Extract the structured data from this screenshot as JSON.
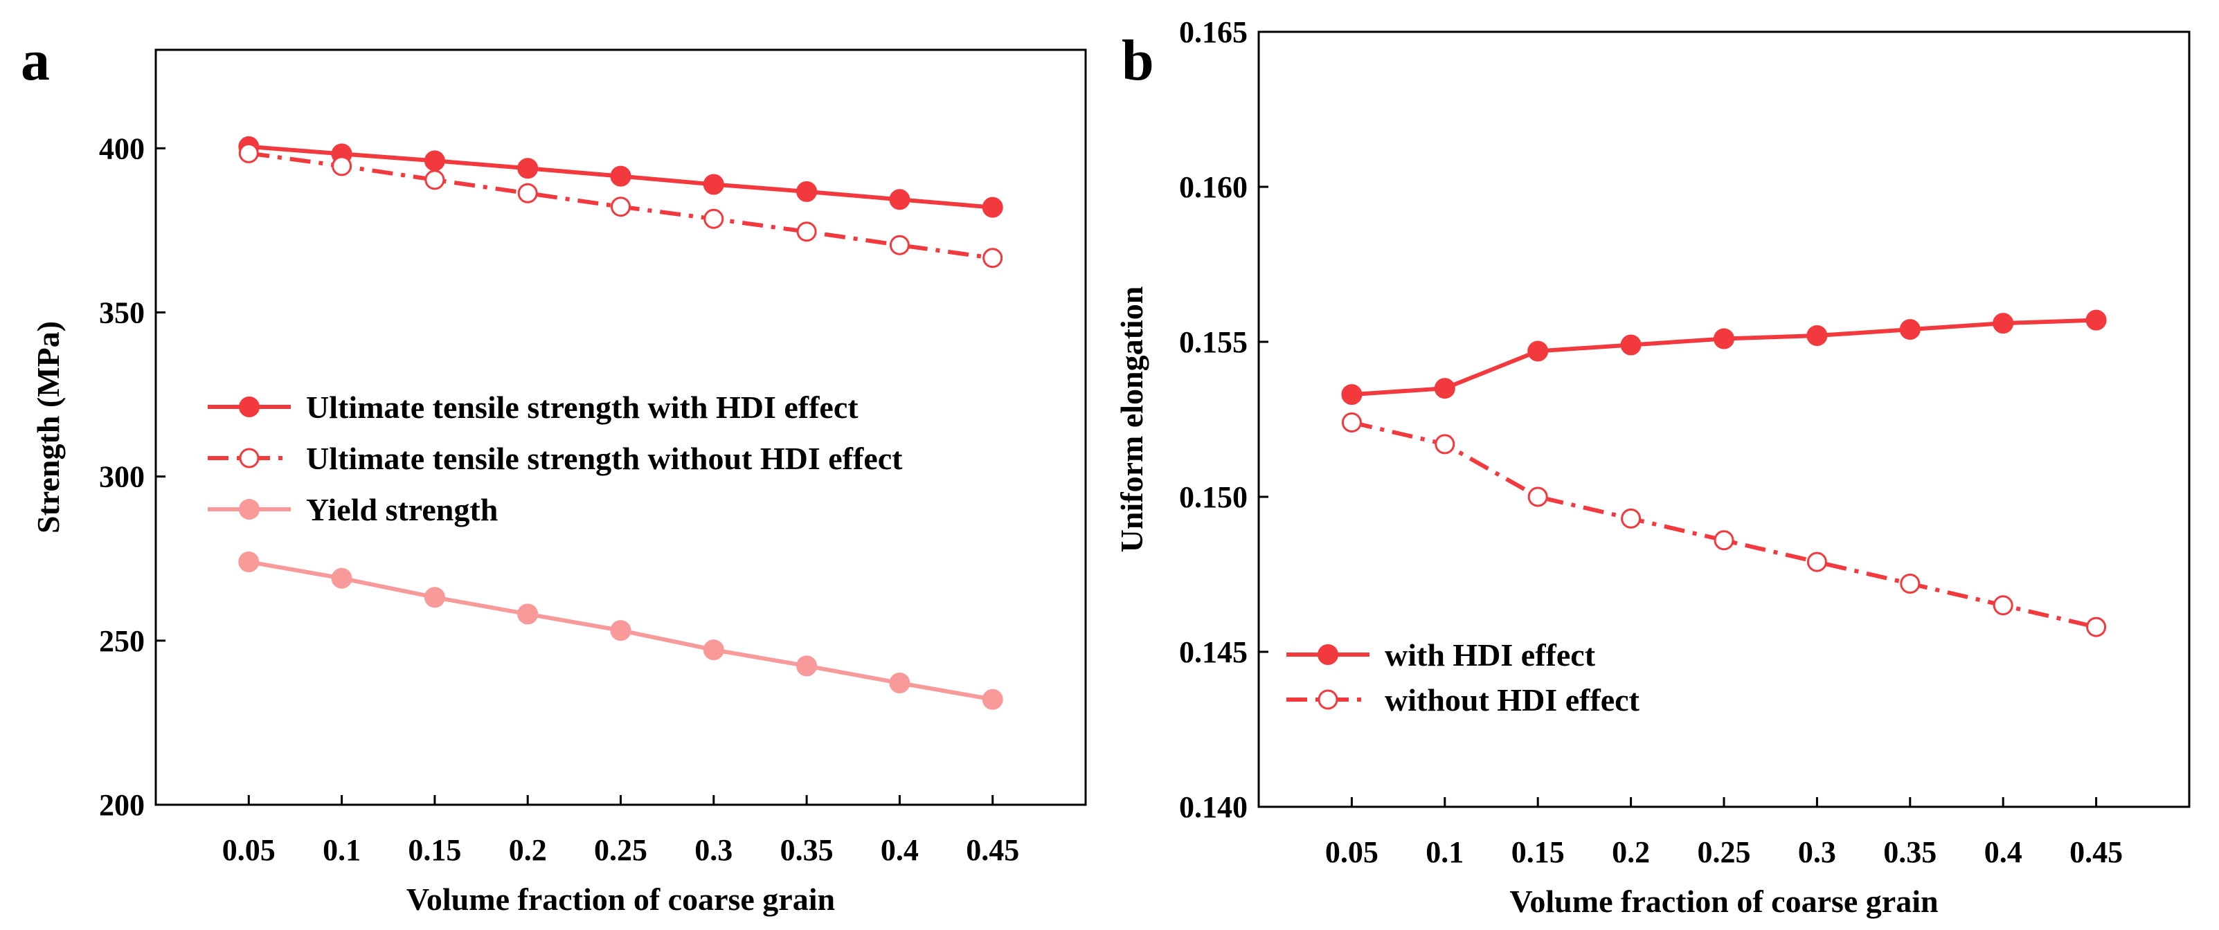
{
  "colors": {
    "series_red": "#f2393d",
    "series_pink": "#f99a9a",
    "axis": "#000000",
    "background": "#ffffff"
  },
  "chart_data": [
    {
      "panel_label": "a",
      "type": "line",
      "title": "",
      "xlabel": "Volume fraction of coarse grain",
      "ylabel": "Strength (MPa)",
      "x": [
        0.05,
        0.1,
        0.15,
        0.2,
        0.25,
        0.3,
        0.35,
        0.4,
        0.45
      ],
      "x_tick_labels": [
        "0.05",
        "0.1",
        "0.15",
        "0.2",
        "0.25",
        "0.3",
        "0.35",
        "0.4",
        "0.45"
      ],
      "xlim": [
        0.0,
        0.5
      ],
      "ylim": [
        200,
        430
      ],
      "y_ticks": [
        200,
        250,
        300,
        350,
        400
      ],
      "y_tick_labels": [
        "200",
        "250",
        "300",
        "350",
        "400"
      ],
      "grid": false,
      "legend_position": "center-left",
      "series": [
        {
          "name": "Ultimate tensile strength with HDI effect",
          "color": "#f2393d",
          "line_style": "solid",
          "marker": "filled-circle",
          "values": [
            400.5,
            398.3,
            396.2,
            393.9,
            391.5,
            389.0,
            386.8,
            384.4,
            382.0
          ]
        },
        {
          "name": "Ultimate tensile strength without HDI effect",
          "color": "#f2393d",
          "line_style": "dash-dot",
          "marker": "open-circle",
          "values": [
            398.5,
            394.6,
            390.4,
            386.3,
            382.2,
            378.5,
            374.6,
            370.5,
            366.6
          ]
        },
        {
          "name": "Yield strength",
          "color": "#f99a9a",
          "line_style": "solid",
          "marker": "filled-circle",
          "values": [
            274.0,
            269.0,
            263.2,
            258.1,
            253.1,
            247.2,
            242.3,
            237.1,
            232.1
          ]
        }
      ]
    },
    {
      "panel_label": "b",
      "type": "line",
      "title": "",
      "xlabel": "Volume fraction of coarse grain",
      "ylabel": "Uniform elongation",
      "x": [
        0.05,
        0.1,
        0.15,
        0.2,
        0.25,
        0.3,
        0.35,
        0.4,
        0.45
      ],
      "x_tick_labels": [
        "0.05",
        "0.1",
        "0.15",
        "0.2",
        "0.25",
        "0.3",
        "0.35",
        "0.4",
        "0.45"
      ],
      "xlim": [
        0.0,
        0.5
      ],
      "ylim": [
        0.14,
        0.165
      ],
      "y_ticks": [
        0.14,
        0.145,
        0.15,
        0.155,
        0.16,
        0.165
      ],
      "y_tick_labels": [
        "0.140",
        "0.145",
        "0.150",
        "0.155",
        "0.160",
        "0.165"
      ],
      "grid": false,
      "legend_position": "bottom-left",
      "series": [
        {
          "name": "with HDI effect",
          "color": "#f2393d",
          "line_style": "solid",
          "marker": "filled-circle",
          "values": [
            0.1533,
            0.1535,
            0.1547,
            0.1549,
            0.1551,
            0.1552,
            0.1554,
            0.1556,
            0.1557
          ]
        },
        {
          "name": "without HDI effect",
          "color": "#f2393d",
          "line_style": "dash-dot",
          "marker": "open-circle",
          "values": [
            0.1524,
            0.1517,
            0.15,
            0.1493,
            0.1486,
            0.1479,
            0.1472,
            0.1465,
            0.1458
          ]
        }
      ]
    }
  ]
}
